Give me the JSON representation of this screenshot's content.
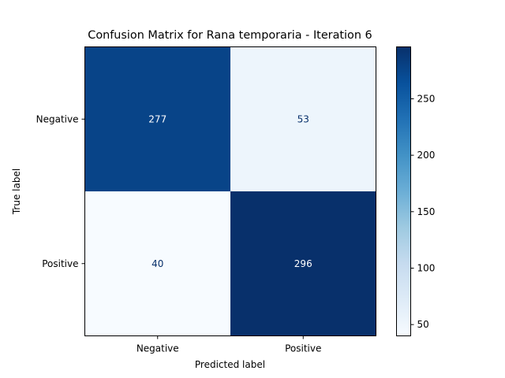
{
  "chart_data": {
    "type": "heatmap",
    "title": "Confusion Matrix for Rana temporaria - Iteration 6",
    "xlabel": "Predicted label",
    "ylabel": "True label",
    "x_categories": [
      "Negative",
      "Positive"
    ],
    "y_categories": [
      "Negative",
      "Positive"
    ],
    "values": [
      [
        277,
        53
      ],
      [
        40,
        296
      ]
    ],
    "colormap": "Blues",
    "colorbar": {
      "range": [
        40,
        296
      ],
      "ticks": [
        50,
        100,
        150,
        200,
        250
      ]
    }
  }
}
